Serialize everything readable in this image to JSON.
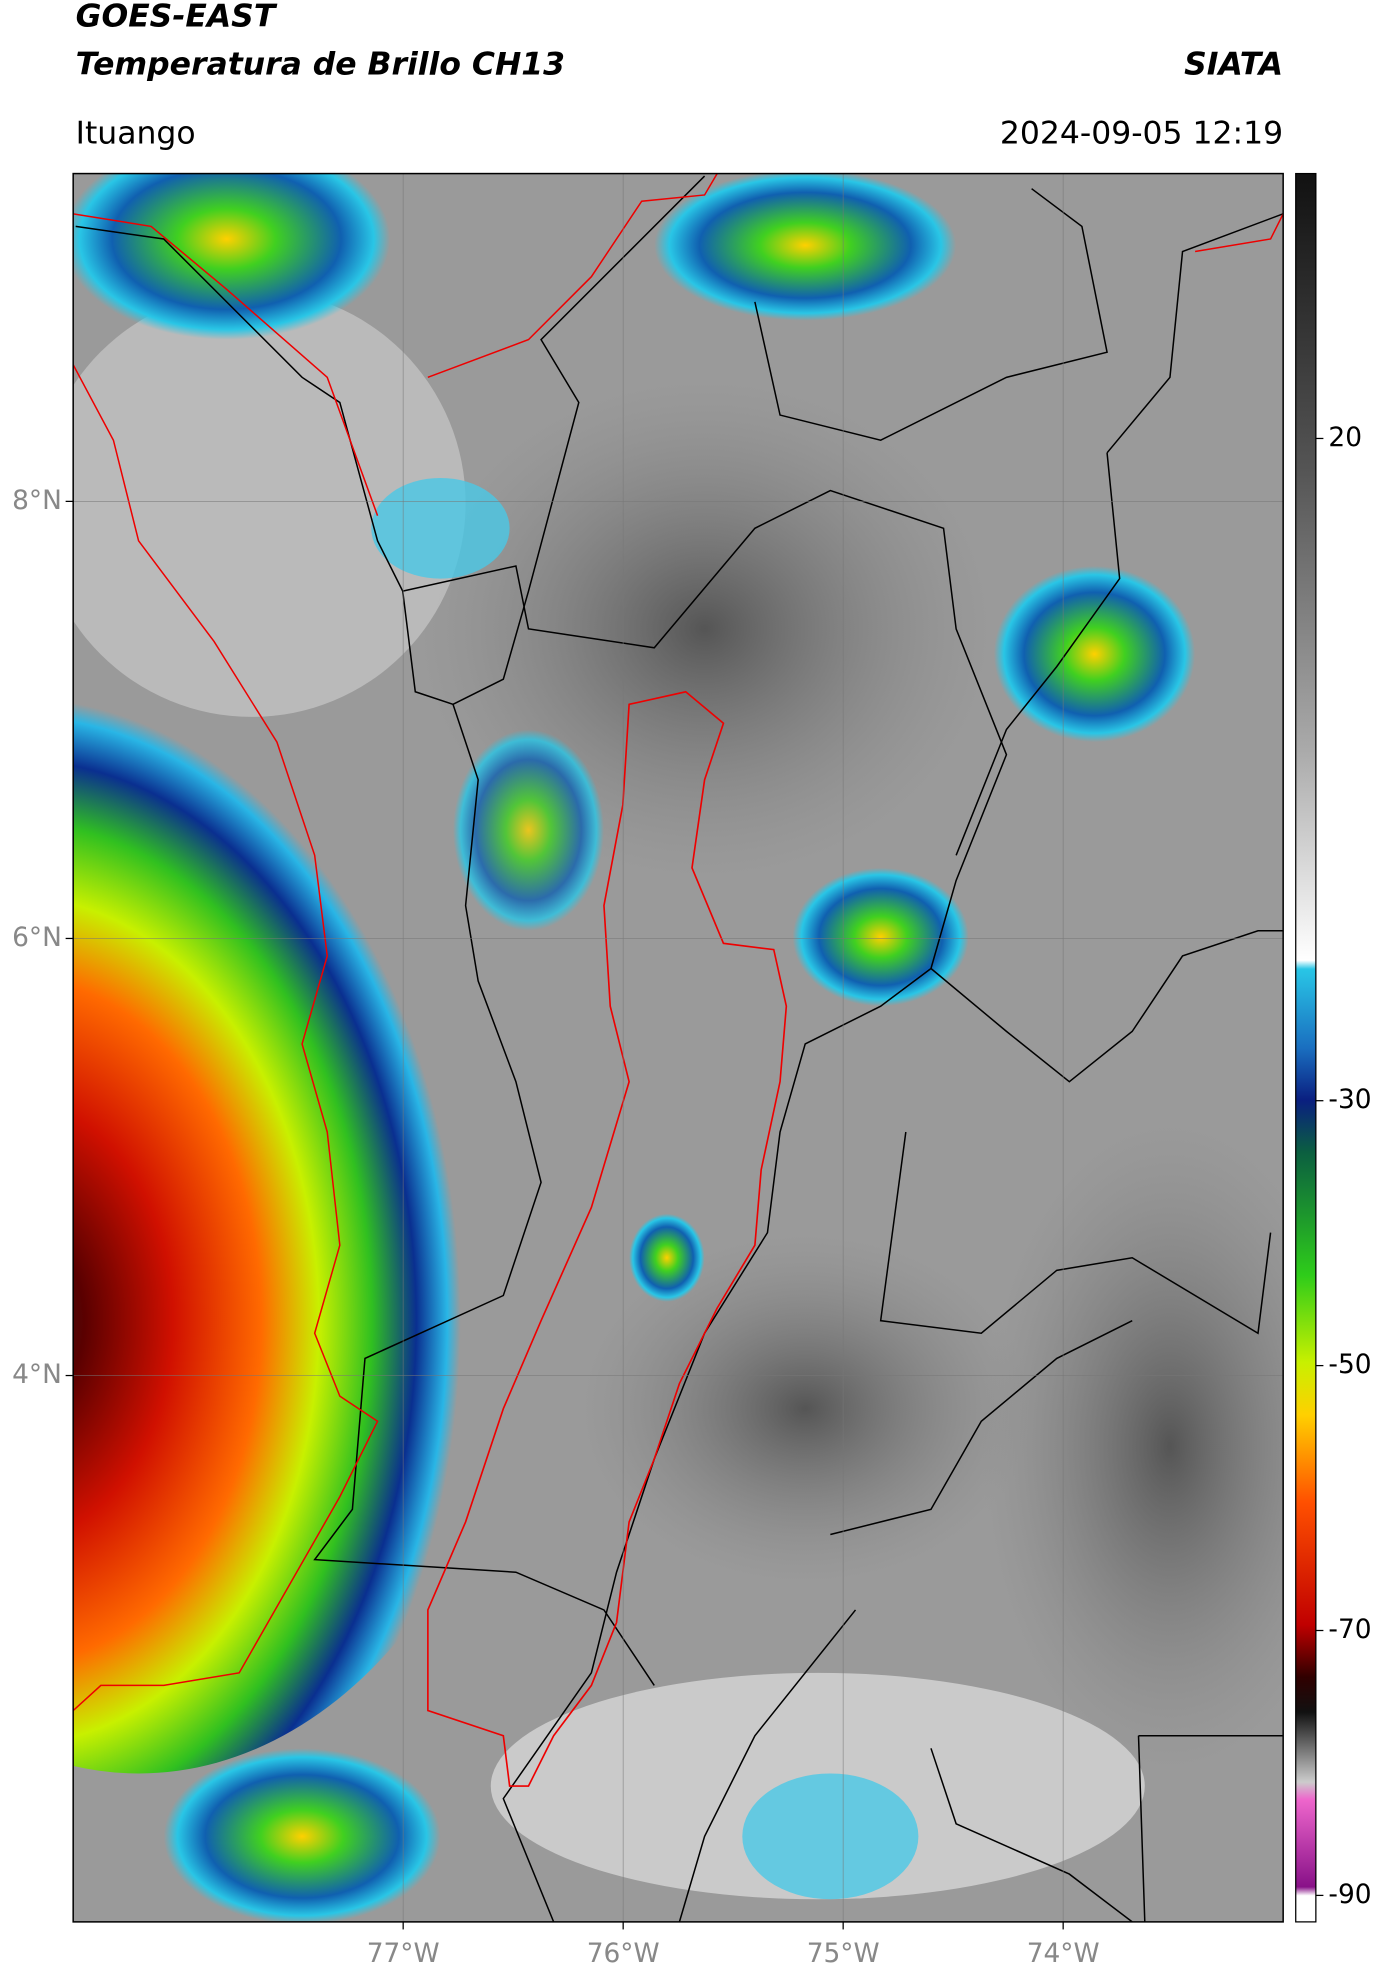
{
  "header": {
    "title": "GOES-EAST",
    "subtitle": "Temperatura de Brillo CH13",
    "brand": "SIATA",
    "location": "Ituango",
    "datetime": "2024-09-05 12:19"
  },
  "chart_data": {
    "type": "map",
    "xlim": [
      -78.5,
      -73.0
    ],
    "ylim": [
      1.5,
      9.5
    ],
    "xticks": [
      {
        "value": -77,
        "label": "77°W"
      },
      {
        "value": -76,
        "label": "76°W"
      },
      {
        "value": -75,
        "label": "75°W"
      },
      {
        "value": -74,
        "label": "74°W"
      }
    ],
    "yticks": [
      {
        "value": 8,
        "label": "8°N"
      },
      {
        "value": 6,
        "label": "6°N"
      },
      {
        "value": 4,
        "label": "4°N"
      }
    ],
    "grid": true,
    "colorbar": {
      "lim": [
        40,
        -92
      ],
      "ticks": [
        20,
        -30,
        -50,
        -70,
        -90
      ]
    }
  }
}
